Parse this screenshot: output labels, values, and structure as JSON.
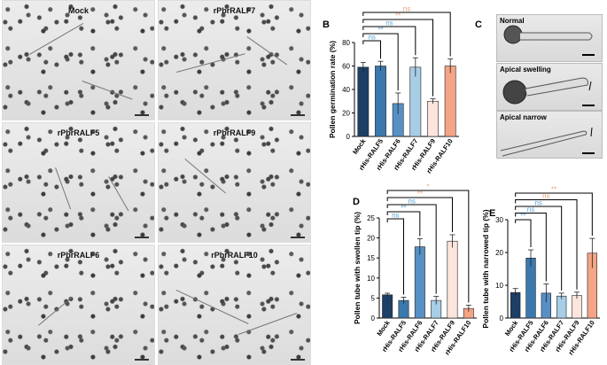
{
  "panels": {
    "A": {
      "letter": "A",
      "images": [
        {
          "label": "Mock"
        },
        {
          "label": "rPbrRALF7"
        },
        {
          "label": "rPbrRALF5"
        },
        {
          "label": "rPbrRALF9"
        },
        {
          "label": "rPbrRALF6"
        },
        {
          "label": "rPbrRALF10"
        }
      ]
    },
    "C": {
      "letter": "C",
      "images": [
        {
          "label": "Normal"
        },
        {
          "label": "Apical swelling"
        },
        {
          "label": "Apical narrow"
        }
      ]
    }
  },
  "colors": {
    "Mock": "#1c3f66",
    "rHis-RALF5": "#3b78ad",
    "rHis-RALF6": "#5690c4",
    "rHis-RALF7": "#a8cde6",
    "rHis-RALF9": "#fbe5dc",
    "rHis-RALF10": "#f4a585",
    "sig_blue": "#5aa7d6",
    "sig_orange": "#f0a080"
  },
  "chart_data": [
    {
      "panel": "B",
      "type": "bar",
      "categories": [
        "Mock",
        "rHis-RALF5",
        "rHis-RALF6",
        "rHis-RALF7",
        "rHis-RALF9",
        "rHis-RALF10"
      ],
      "values": [
        59,
        60,
        28,
        59,
        30,
        60
      ],
      "errors": [
        4,
        4,
        9,
        8,
        2,
        6
      ],
      "ylabel": "Pollen germination rate (%)",
      "ylim": [
        0,
        80
      ],
      "yticks": [
        0,
        20,
        40,
        60,
        80
      ],
      "brackets": [
        {
          "to": "rHis-RALF5",
          "label": "ns",
          "color": "#5aa7d6"
        },
        {
          "to": "rHis-RALF6",
          "label": "**",
          "color": "#5aa7d6"
        },
        {
          "to": "rHis-RALF7",
          "label": "ns",
          "color": "#5aa7d6"
        },
        {
          "to": "rHis-RALF9",
          "label": "**",
          "color": "#f0a080"
        },
        {
          "to": "rHis-RALF10",
          "label": "ns",
          "color": "#f0a080"
        }
      ]
    },
    {
      "panel": "D",
      "type": "bar",
      "categories": [
        "Mock",
        "rHis-RALF5",
        "rHis-RALF6",
        "rHis-RALF7",
        "rHis-RALF9",
        "rHis-RALF10"
      ],
      "values": [
        5.8,
        4.4,
        17.8,
        4.4,
        19.2,
        2.4
      ],
      "errors": [
        0.4,
        0.8,
        2.0,
        1.0,
        1.6,
        0.8
      ],
      "ylabel": "Pollen tube with swollen tip (%)",
      "ylim": [
        0,
        25
      ],
      "yticks": [
        0,
        5,
        10,
        15,
        20,
        25
      ],
      "brackets": [
        {
          "to": "rHis-RALF5",
          "label": "ns",
          "color": "#5aa7d6"
        },
        {
          "to": "rHis-RALF6",
          "label": "**",
          "color": "#5aa7d6"
        },
        {
          "to": "rHis-RALF7",
          "label": "ns",
          "color": "#5aa7d6"
        },
        {
          "to": "rHis-RALF9",
          "label": "**",
          "color": "#f0a080"
        },
        {
          "to": "rHis-RALF10",
          "label": "*",
          "color": "#f0a080"
        }
      ]
    },
    {
      "panel": "E",
      "type": "bar",
      "categories": [
        "Mock",
        "rHis-RALF5",
        "rHis-RALF6",
        "rHis-RALF7",
        "rHis-RALF9",
        "rHis-RALF10"
      ],
      "values": [
        7.8,
        18.3,
        7.6,
        6.7,
        6.9,
        19.8
      ],
      "errors": [
        1.2,
        2.5,
        2.8,
        0.9,
        1.0,
        4.5
      ],
      "ylabel": "Pollen tube with narrowed tip (%)",
      "ylim": [
        0,
        30
      ],
      "yticks": [
        0,
        10,
        20,
        30
      ],
      "brackets": [
        {
          "to": "rHis-RALF5",
          "label": "**",
          "color": "#5aa7d6"
        },
        {
          "to": "rHis-RALF6",
          "label": "ns",
          "color": "#5aa7d6"
        },
        {
          "to": "rHis-RALF7",
          "label": "ns",
          "color": "#5aa7d6"
        },
        {
          "to": "rHis-RALF9",
          "label": "ns",
          "color": "#f0a080"
        },
        {
          "to": "rHis-RALF10",
          "label": "**",
          "color": "#f0a080"
        }
      ]
    }
  ]
}
